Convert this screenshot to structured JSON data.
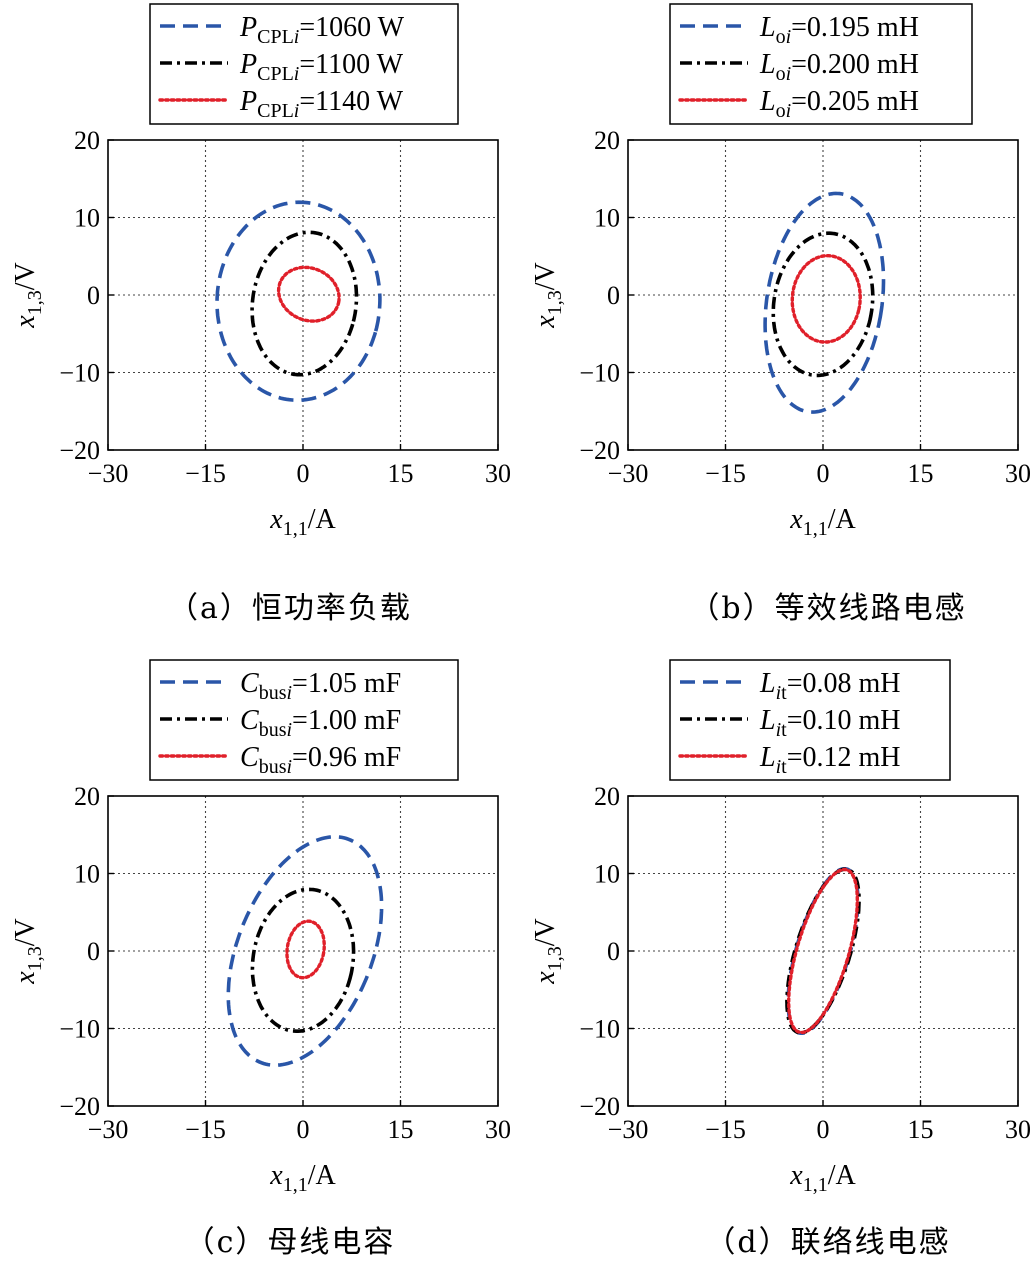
{
  "chart_data": [
    {
      "panel": "a",
      "type": "line",
      "caption": "（a）恒功率负载",
      "xlabel": "x1,1/A",
      "ylabel": "x1,3/V",
      "xlim": [
        -30,
        30
      ],
      "ylim": [
        -20,
        20
      ],
      "xticks": [
        "−30",
        "−15",
        "0",
        "15",
        "30"
      ],
      "yticks": [
        "20",
        "10",
        "0",
        "−10",
        "−20"
      ],
      "grid": true,
      "legend_position": "top",
      "series": [
        {
          "name": "PCPLi=1060 W",
          "name_parts": {
            "sym": "P",
            "sub": "CPL",
            "subi": "i",
            "val": "=1060 W"
          },
          "color": "#2a56a8",
          "dash": "dashed",
          "ellipse": {
            "cx": -0.7,
            "cy": -0.8,
            "rx": 12.5,
            "ry": 12.8,
            "rot": -18
          }
        },
        {
          "name": "PCPLi=1100 W",
          "name_parts": {
            "sym": "P",
            "sub": "CPL",
            "subi": "i",
            "val": "=1100 W"
          },
          "color": "#000000",
          "dash": "dashdot",
          "ellipse": {
            "cx": 0.2,
            "cy": -1.1,
            "rx": 7.9,
            "ry": 9.3,
            "rot": -17
          }
        },
        {
          "name": "PCPLi=1140 W",
          "name_parts": {
            "sym": "P",
            "sub": "CPL",
            "subi": "i",
            "val": "=1140 W"
          },
          "color": "#e0202a",
          "dash": "dotted",
          "ellipse": {
            "cx": 0.9,
            "cy": 0.1,
            "rx": 4.7,
            "ry": 3.4,
            "rot": -12
          }
        }
      ]
    },
    {
      "panel": "b",
      "type": "line",
      "caption": "（b）等效线路电感",
      "xlabel": "x1,1/A",
      "ylabel": "x1,3/V",
      "xlim": [
        -30,
        30
      ],
      "ylim": [
        -20,
        20
      ],
      "xticks": [
        "−30",
        "−15",
        "0",
        "15",
        "30"
      ],
      "yticks": [
        "20",
        "10",
        "0",
        "−10",
        "−20"
      ],
      "grid": true,
      "legend_position": "top",
      "series": [
        {
          "name": "Loi=0.195 mH",
          "name_parts": {
            "sym": "L",
            "sub": "o",
            "subi": "i",
            "val": "=0.195 mH"
          },
          "color": "#2a56a8",
          "dash": "dashed",
          "ellipse": {
            "cx": 0.2,
            "cy": -1.0,
            "rx": 8.8,
            "ry": 14.3,
            "rot": -12
          }
        },
        {
          "name": "Loi=0.200 mH",
          "name_parts": {
            "sym": "L",
            "sub": "o",
            "subi": "i",
            "val": "=0.200 mH"
          },
          "color": "#000000",
          "dash": "dashdot",
          "ellipse": {
            "cx": 0.0,
            "cy": -1.2,
            "rx": 7.5,
            "ry": 9.3,
            "rot": -16
          }
        },
        {
          "name": "Loi=0.205 mH",
          "name_parts": {
            "sym": "L",
            "sub": "o",
            "subi": "i",
            "val": "=0.205 mH"
          },
          "color": "#e0202a",
          "dash": "dotted",
          "ellipse": {
            "cx": 0.5,
            "cy": -0.5,
            "rx": 5.2,
            "ry": 5.6,
            "rot": -15
          }
        }
      ]
    },
    {
      "panel": "c",
      "type": "line",
      "caption": "（c）母线电容",
      "xlabel": "x1,1/A",
      "ylabel": "x1,3/V",
      "xlim": [
        -30,
        30
      ],
      "ylim": [
        -20,
        20
      ],
      "xticks": [
        "−30",
        "−15",
        "0",
        "15",
        "30"
      ],
      "yticks": [
        "20",
        "10",
        "0",
        "−10",
        "−20"
      ],
      "grid": true,
      "legend_position": "top",
      "series": [
        {
          "name": "Cbusi=1.05 mF",
          "name_parts": {
            "sym": "C",
            "sub": "bus",
            "subi": "i",
            "val": "=1.05 mF"
          },
          "color": "#2a56a8",
          "dash": "dashed",
          "ellipse": {
            "cx": 0.3,
            "cy": 0.0,
            "rx": 10.0,
            "ry": 16.0,
            "rot": -30
          }
        },
        {
          "name": "Cbusi=1.00 mF",
          "name_parts": {
            "sym": "C",
            "sub": "bus",
            "subi": "i",
            "val": "=1.00 mF"
          },
          "color": "#000000",
          "dash": "dashdot",
          "ellipse": {
            "cx": 0.0,
            "cy": -1.2,
            "rx": 7.6,
            "ry": 9.3,
            "rot": -18
          }
        },
        {
          "name": "Cbusi=0.96 mF",
          "name_parts": {
            "sym": "C",
            "sub": "bus",
            "subi": "i",
            "val": "=0.96 mF"
          },
          "color": "#e0202a",
          "dash": "dotted",
          "ellipse": {
            "cx": 0.4,
            "cy": 0.2,
            "rx": 2.8,
            "ry": 3.7,
            "rot": -15
          }
        }
      ]
    },
    {
      "panel": "d",
      "type": "line",
      "caption": "（d）联络线电感",
      "xlabel": "x1,1/A",
      "ylabel": "x1,3/V",
      "xlim": [
        -30,
        30
      ],
      "ylim": [
        -20,
        20
      ],
      "xticks": [
        "−30",
        "−15",
        "0",
        "15",
        "30"
      ],
      "yticks": [
        "20",
        "10",
        "0",
        "−10",
        "−20"
      ],
      "grid": true,
      "legend_position": "top",
      "series": [
        {
          "name": "Lit=0.08 mH",
          "name_parts": {
            "sym": "L",
            "sub": "",
            "subi": "i",
            "subt": "t",
            "val": "=0.08 mH"
          },
          "color": "#2a56a8",
          "dash": "dashed",
          "ellipse": {
            "cx": 0.0,
            "cy": 0.0,
            "rx": 4.0,
            "ry": 11.2,
            "rot": -20
          }
        },
        {
          "name": "Lit=0.10 mH",
          "name_parts": {
            "sym": "L",
            "sub": "",
            "subi": "i",
            "subt": "t",
            "val": "=0.10 mH"
          },
          "color": "#000000",
          "dash": "dashdot",
          "ellipse": {
            "cx": 0.0,
            "cy": 0.0,
            "rx": 4.1,
            "ry": 11.2,
            "rot": -21
          }
        },
        {
          "name": "Lit=0.12 mH",
          "name_parts": {
            "sym": "L",
            "sub": "",
            "subi": "i",
            "subt": "t",
            "val": "=0.12 mH"
          },
          "color": "#e0202a",
          "dash": "dotted",
          "ellipse": {
            "cx": 0.0,
            "cy": 0.0,
            "rx": 3.9,
            "ry": 11.1,
            "rot": -20
          }
        }
      ]
    }
  ]
}
